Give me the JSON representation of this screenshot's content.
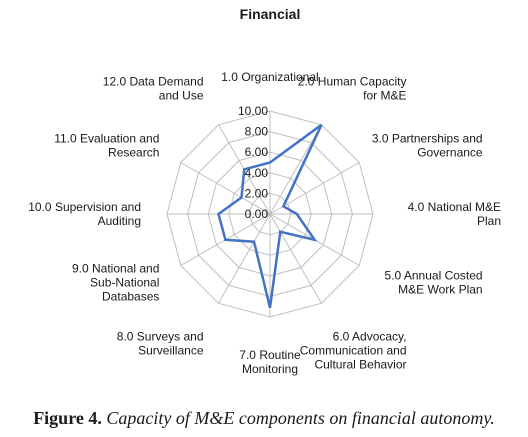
{
  "chart_data": {
    "type": "radar",
    "title": "Financial",
    "axes": [
      [
        "1.0 Organizational"
      ],
      [
        "2.0 Human Capacity",
        "for M&E"
      ],
      [
        "3.0 Partnerships and",
        "Governance"
      ],
      [
        "4.0 National M&E",
        "Plan"
      ],
      [
        "5.0 Annual Costed",
        "M&E Work Plan"
      ],
      [
        "6.0 Advocacy,",
        "Communication and",
        "Cultural Behavior"
      ],
      [
        "7.0 Routine",
        "Monitoring"
      ],
      [
        "8.0 Surveys and",
        "Surveillance"
      ],
      [
        "9.0 National and",
        "Sub-National",
        "Databases"
      ],
      [
        "10.0 Supervision and",
        "Auditing"
      ],
      [
        "11.0 Evaluation and",
        "Research"
      ],
      [
        "12.0 Data Demand",
        "and Use"
      ]
    ],
    "rlim": [
      0,
      10
    ],
    "ticks": [
      "0.00",
      "2.00",
      "4.00",
      "6.00",
      "8.00",
      "10.00"
    ],
    "series": [
      {
        "values": [
          5.0,
          10.0,
          1.5,
          2.6,
          5.0,
          2.0,
          9.1,
          3.1,
          5.0,
          5.0,
          3.2,
          5.0
        ]
      }
    ],
    "line_color": "#4472c4",
    "grid_color": "#bfbfbf",
    "grid": true,
    "legend": "none"
  },
  "caption": {
    "label": "Figure 4.",
    "text": "Capacity of M&E components on financial autonomy."
  }
}
